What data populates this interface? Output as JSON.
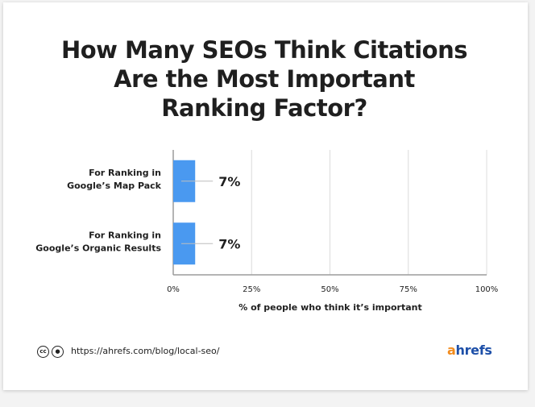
{
  "title_lines": [
    "How Many SEOs Think Citations",
    "Are the Most Important",
    "Ranking Factor?"
  ],
  "chart_data": {
    "type": "bar",
    "orientation": "horizontal",
    "title": "How Many SEOs Think Citations Are the Most Important Ranking Factor?",
    "categories": [
      [
        "For Ranking in",
        "Google’s Map Pack"
      ],
      [
        "For Ranking in",
        "Google’s Organic Results"
      ]
    ],
    "values": [
      7,
      7
    ],
    "value_labels": [
      "7%",
      "7%"
    ],
    "xlabel": "% of people who think it’s important",
    "ylabel": "",
    "xlim": [
      0,
      100
    ],
    "x_ticks": [
      0,
      25,
      50,
      75,
      100
    ],
    "x_tick_labels": [
      "0%",
      "25%",
      "50%",
      "75%",
      "100%"
    ],
    "grid": true,
    "bar_color": "#4a99f0"
  },
  "footer": {
    "license_icons": [
      "cc-icon",
      "by-icon"
    ],
    "url": "https://ahrefs.com/blog/local-seo/",
    "logo_prefix": "a",
    "logo_rest": "hrefs"
  },
  "colors": {
    "text": "#1f1f1f",
    "grid": "#dcdcdc",
    "axis": "#9b9b9b",
    "logo_blue": "#1d4fa8",
    "logo_orange": "#f28c1e"
  }
}
